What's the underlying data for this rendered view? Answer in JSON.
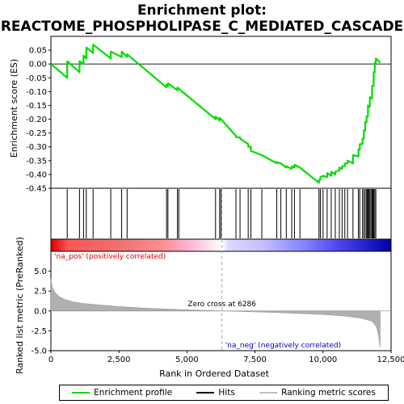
{
  "chart_data": [
    {
      "type": "line",
      "panel": "enrichment",
      "title_line1": "Enrichment plot:",
      "title_line2": "REACTOME_PHOSPHOLIPASE_C_MEDIATED_CASCADE",
      "ylabel": "Enrichment score (ES)",
      "ylim": [
        -0.45,
        0.1
      ],
      "xlim": [
        0,
        12500
      ],
      "yticks": [
        0.05,
        0.0,
        -0.05,
        -0.1,
        -0.15,
        -0.2,
        -0.25,
        -0.3,
        -0.35,
        -0.4,
        -0.45
      ],
      "ytick_labels": [
        "0.05",
        "0.00",
        "-0.05",
        "-0.10",
        "-0.15",
        "-0.20",
        "-0.25",
        "-0.30",
        "-0.35",
        "-0.40",
        "-0.45"
      ],
      "line_color": "#00dd00",
      "zero_line": true,
      "hit_positions": [
        600,
        1050,
        1200,
        1300,
        1550,
        2200,
        2600,
        2800,
        4250,
        4300,
        4650,
        4700,
        6050,
        6200,
        6250,
        6800,
        6950,
        7250,
        7350,
        7750,
        8300,
        8450,
        8650,
        8850,
        8950,
        9150,
        9850,
        9900,
        10000,
        10150,
        10300,
        10450,
        10600,
        10700,
        10800,
        10900,
        11100,
        11300,
        11350,
        11450,
        11500,
        11550,
        11600,
        11620,
        11650,
        11680,
        11720,
        11760,
        11800,
        11830,
        11860,
        11900,
        11940
      ],
      "series": [
        {
          "name": "Enrichment profile",
          "x": [
            0,
            600,
            601,
            1050,
            1051,
            1200,
            1201,
            1300,
            1301,
            1550,
            1551,
            2200,
            2201,
            2600,
            2601,
            2800,
            2801,
            4250,
            4251,
            4300,
            4301,
            4650,
            4651,
            4700,
            4701,
            6050,
            6051,
            6200,
            6201,
            6250,
            6251,
            6800,
            6801,
            6950,
            6951,
            7250,
            7251,
            7350,
            7351,
            7750,
            7751,
            8300,
            8301,
            8450,
            8451,
            8650,
            8651,
            8850,
            8851,
            8950,
            8951,
            9150,
            9151,
            9850,
            9851,
            9900,
            9901,
            10000,
            10001,
            10150,
            10151,
            10300,
            10301,
            10450,
            10451,
            10600,
            10601,
            10700,
            10701,
            10800,
            10801,
            10900,
            10901,
            11100,
            11101,
            11300,
            11301,
            11350,
            11351,
            11450,
            11451,
            11500,
            11501,
            11550,
            11551,
            11600,
            11601,
            11650,
            11651,
            11720,
            11721,
            11800,
            11801,
            11860,
            11861,
            11900,
            11901,
            11940,
            11941,
            12100
          ],
          "values": [
            0.0,
            -0.05,
            0.01,
            -0.03,
            0.01,
            -0.0,
            0.03,
            0.02,
            0.06,
            0.04,
            0.07,
            0.02,
            0.045,
            0.025,
            0.045,
            0.025,
            0.035,
            -0.085,
            -0.075,
            -0.08,
            -0.07,
            -0.095,
            -0.085,
            -0.09,
            -0.09,
            -0.2,
            -0.19,
            -0.205,
            -0.195,
            -0.2,
            -0.2,
            -0.26,
            -0.265,
            -0.265,
            -0.27,
            -0.29,
            -0.3,
            -0.3,
            -0.315,
            -0.33,
            -0.33,
            -0.36,
            -0.355,
            -0.36,
            -0.36,
            -0.375,
            -0.37,
            -0.38,
            -0.37,
            -0.375,
            -0.365,
            -0.375,
            -0.375,
            -0.43,
            -0.42,
            -0.42,
            -0.41,
            -0.405,
            -0.405,
            -0.41,
            -0.395,
            -0.405,
            -0.39,
            -0.4,
            -0.39,
            -0.385,
            -0.375,
            -0.38,
            -0.37,
            -0.37,
            -0.36,
            -0.36,
            -0.35,
            -0.36,
            -0.33,
            -0.335,
            -0.31,
            -0.31,
            -0.29,
            -0.29,
            -0.27,
            -0.27,
            -0.24,
            -0.24,
            -0.21,
            -0.21,
            -0.19,
            -0.19,
            -0.15,
            -0.155,
            -0.12,
            -0.125,
            -0.08,
            -0.08,
            -0.03,
            -0.03,
            0.005,
            0.005,
            0.02,
            0.005
          ]
        }
      ]
    },
    {
      "type": "area",
      "panel": "ranked_list",
      "xlabel": "Rank in Ordered Dataset",
      "ylabel": "Ranked list metric (PreRanked)",
      "ylim": [
        -5.0,
        7.5
      ],
      "xlim": [
        0,
        12500
      ],
      "yticks": [
        5.0,
        2.5,
        0.0,
        -2.5,
        -5.0
      ],
      "ytick_labels": [
        "5.0",
        "2.5",
        "0.0",
        "-2.5",
        "-5.0"
      ],
      "xticks": [
        0,
        2500,
        5000,
        7500,
        10000,
        12500
      ],
      "xtick_labels": [
        "0",
        "2,500",
        "5,000",
        "7,500",
        "10,000",
        "12,500"
      ],
      "fill_color": "#b0b0b0",
      "zero_cross": 6286,
      "zero_cross_label": "Zero cross at 6286",
      "pos_label": "'na_pos' (positively correlated)",
      "neg_label": "'na_neg' (negatively correlated)",
      "pos_color": "#dd0000",
      "neg_color": "#0000cc",
      "series": [
        {
          "name": "Ranking metric scores",
          "x": [
            0,
            50,
            150,
            300,
            500,
            800,
            1200,
            1800,
            2500,
            3500,
            4500,
            5500,
            6286,
            7000,
            8000,
            9000,
            10000,
            10800,
            11400,
            11800,
            11950,
            12000,
            12050,
            12100
          ],
          "values": [
            4.0,
            3.0,
            2.3,
            1.8,
            1.45,
            1.15,
            0.95,
            0.75,
            0.55,
            0.35,
            0.2,
            0.08,
            0.0,
            -0.07,
            -0.17,
            -0.3,
            -0.45,
            -0.65,
            -0.9,
            -1.3,
            -1.9,
            -2.5,
            -3.3,
            -4.6
          ]
        }
      ]
    }
  ],
  "legend": {
    "items": [
      {
        "label": "Enrichment profile",
        "color": "#00dd00"
      },
      {
        "label": "Hits",
        "color": "#000000"
      },
      {
        "label": "Ranking metric scores",
        "color": "#c0c0c0"
      }
    ]
  }
}
